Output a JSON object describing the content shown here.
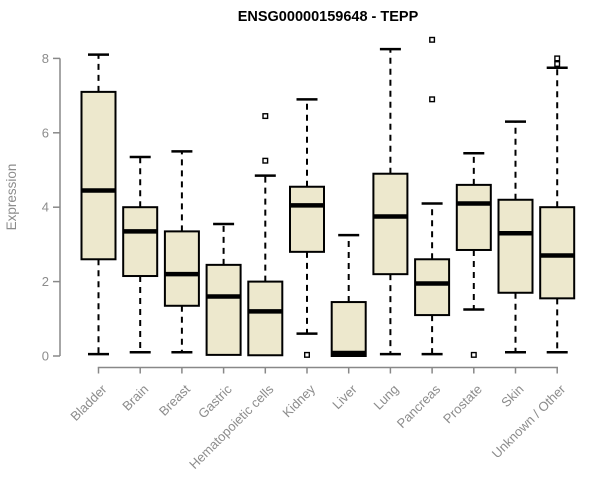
{
  "title": "ENSG00000159648 - TEPP",
  "colors": {
    "box_fill": "#EDE8CD",
    "box_stroke": "#000000",
    "axis_line": "#888888",
    "axis_text": "#8C8C8C",
    "background": "#FFFFFF",
    "outlier_fill": "#FFFFFF"
  },
  "chart_data": {
    "type": "boxplot",
    "title": "ENSG00000159648 - TEPP",
    "xlabel": "",
    "ylabel": "Expression",
    "ylim": [
      0,
      8.6
    ],
    "yticks": [
      0,
      2,
      4,
      6,
      8
    ],
    "ytick_labels": [
      "0",
      "2",
      "4",
      "6",
      "8"
    ],
    "grid": false,
    "legend": "none",
    "categories": [
      "Bladder",
      "Brain",
      "Breast",
      "Gastric",
      "Hematopoietic cells",
      "Kidney",
      "Liver",
      "Lung",
      "Pancreas",
      "Prostate",
      "Skin",
      "Unknown / Other"
    ],
    "series": [
      {
        "category": "Bladder",
        "whisker_low": 0.05,
        "q1": 2.6,
        "median": 4.45,
        "q3": 7.1,
        "whisker_high": 8.1,
        "outliers": []
      },
      {
        "category": "Brain",
        "whisker_low": 0.1,
        "q1": 2.15,
        "median": 3.35,
        "q3": 4.0,
        "whisker_high": 5.35,
        "outliers": []
      },
      {
        "category": "Breast",
        "whisker_low": 0.1,
        "q1": 1.35,
        "median": 2.2,
        "q3": 3.35,
        "whisker_high": 5.5,
        "outliers": []
      },
      {
        "category": "Gastric",
        "whisker_low": 0.03,
        "q1": 0.03,
        "median": 1.6,
        "q3": 2.45,
        "whisker_high": 3.55,
        "outliers": []
      },
      {
        "category": "Hematopoietic cells",
        "whisker_low": 0.02,
        "q1": 0.02,
        "median": 1.2,
        "q3": 2.0,
        "whisker_high": 4.85,
        "outliers": [
          5.25,
          6.45
        ]
      },
      {
        "category": "Kidney",
        "whisker_low": 0.6,
        "q1": 2.8,
        "median": 4.05,
        "q3": 4.55,
        "whisker_high": 6.9,
        "outliers": [
          0.03
        ]
      },
      {
        "category": "Liver",
        "whisker_low": 0.0,
        "q1": 0.0,
        "median": 0.08,
        "q3": 1.45,
        "whisker_high": 3.25,
        "outliers": []
      },
      {
        "category": "Lung",
        "whisker_low": 0.05,
        "q1": 2.2,
        "median": 3.75,
        "q3": 4.9,
        "whisker_high": 8.25,
        "outliers": []
      },
      {
        "category": "Pancreas",
        "whisker_low": 0.05,
        "q1": 1.1,
        "median": 1.95,
        "q3": 2.6,
        "whisker_high": 4.1,
        "outliers": [
          6.9,
          8.5
        ]
      },
      {
        "category": "Prostate",
        "whisker_low": 1.25,
        "q1": 2.85,
        "median": 4.1,
        "q3": 4.6,
        "whisker_high": 5.45,
        "outliers": [
          0.03
        ]
      },
      {
        "category": "Skin",
        "whisker_low": 0.1,
        "q1": 1.7,
        "median": 3.3,
        "q3": 4.2,
        "whisker_high": 6.3,
        "outliers": []
      },
      {
        "category": "Unknown / Other",
        "whisker_low": 0.1,
        "q1": 1.55,
        "median": 2.7,
        "q3": 4.0,
        "whisker_high": 7.75,
        "outliers": [
          7.85,
          8.0
        ]
      }
    ]
  }
}
